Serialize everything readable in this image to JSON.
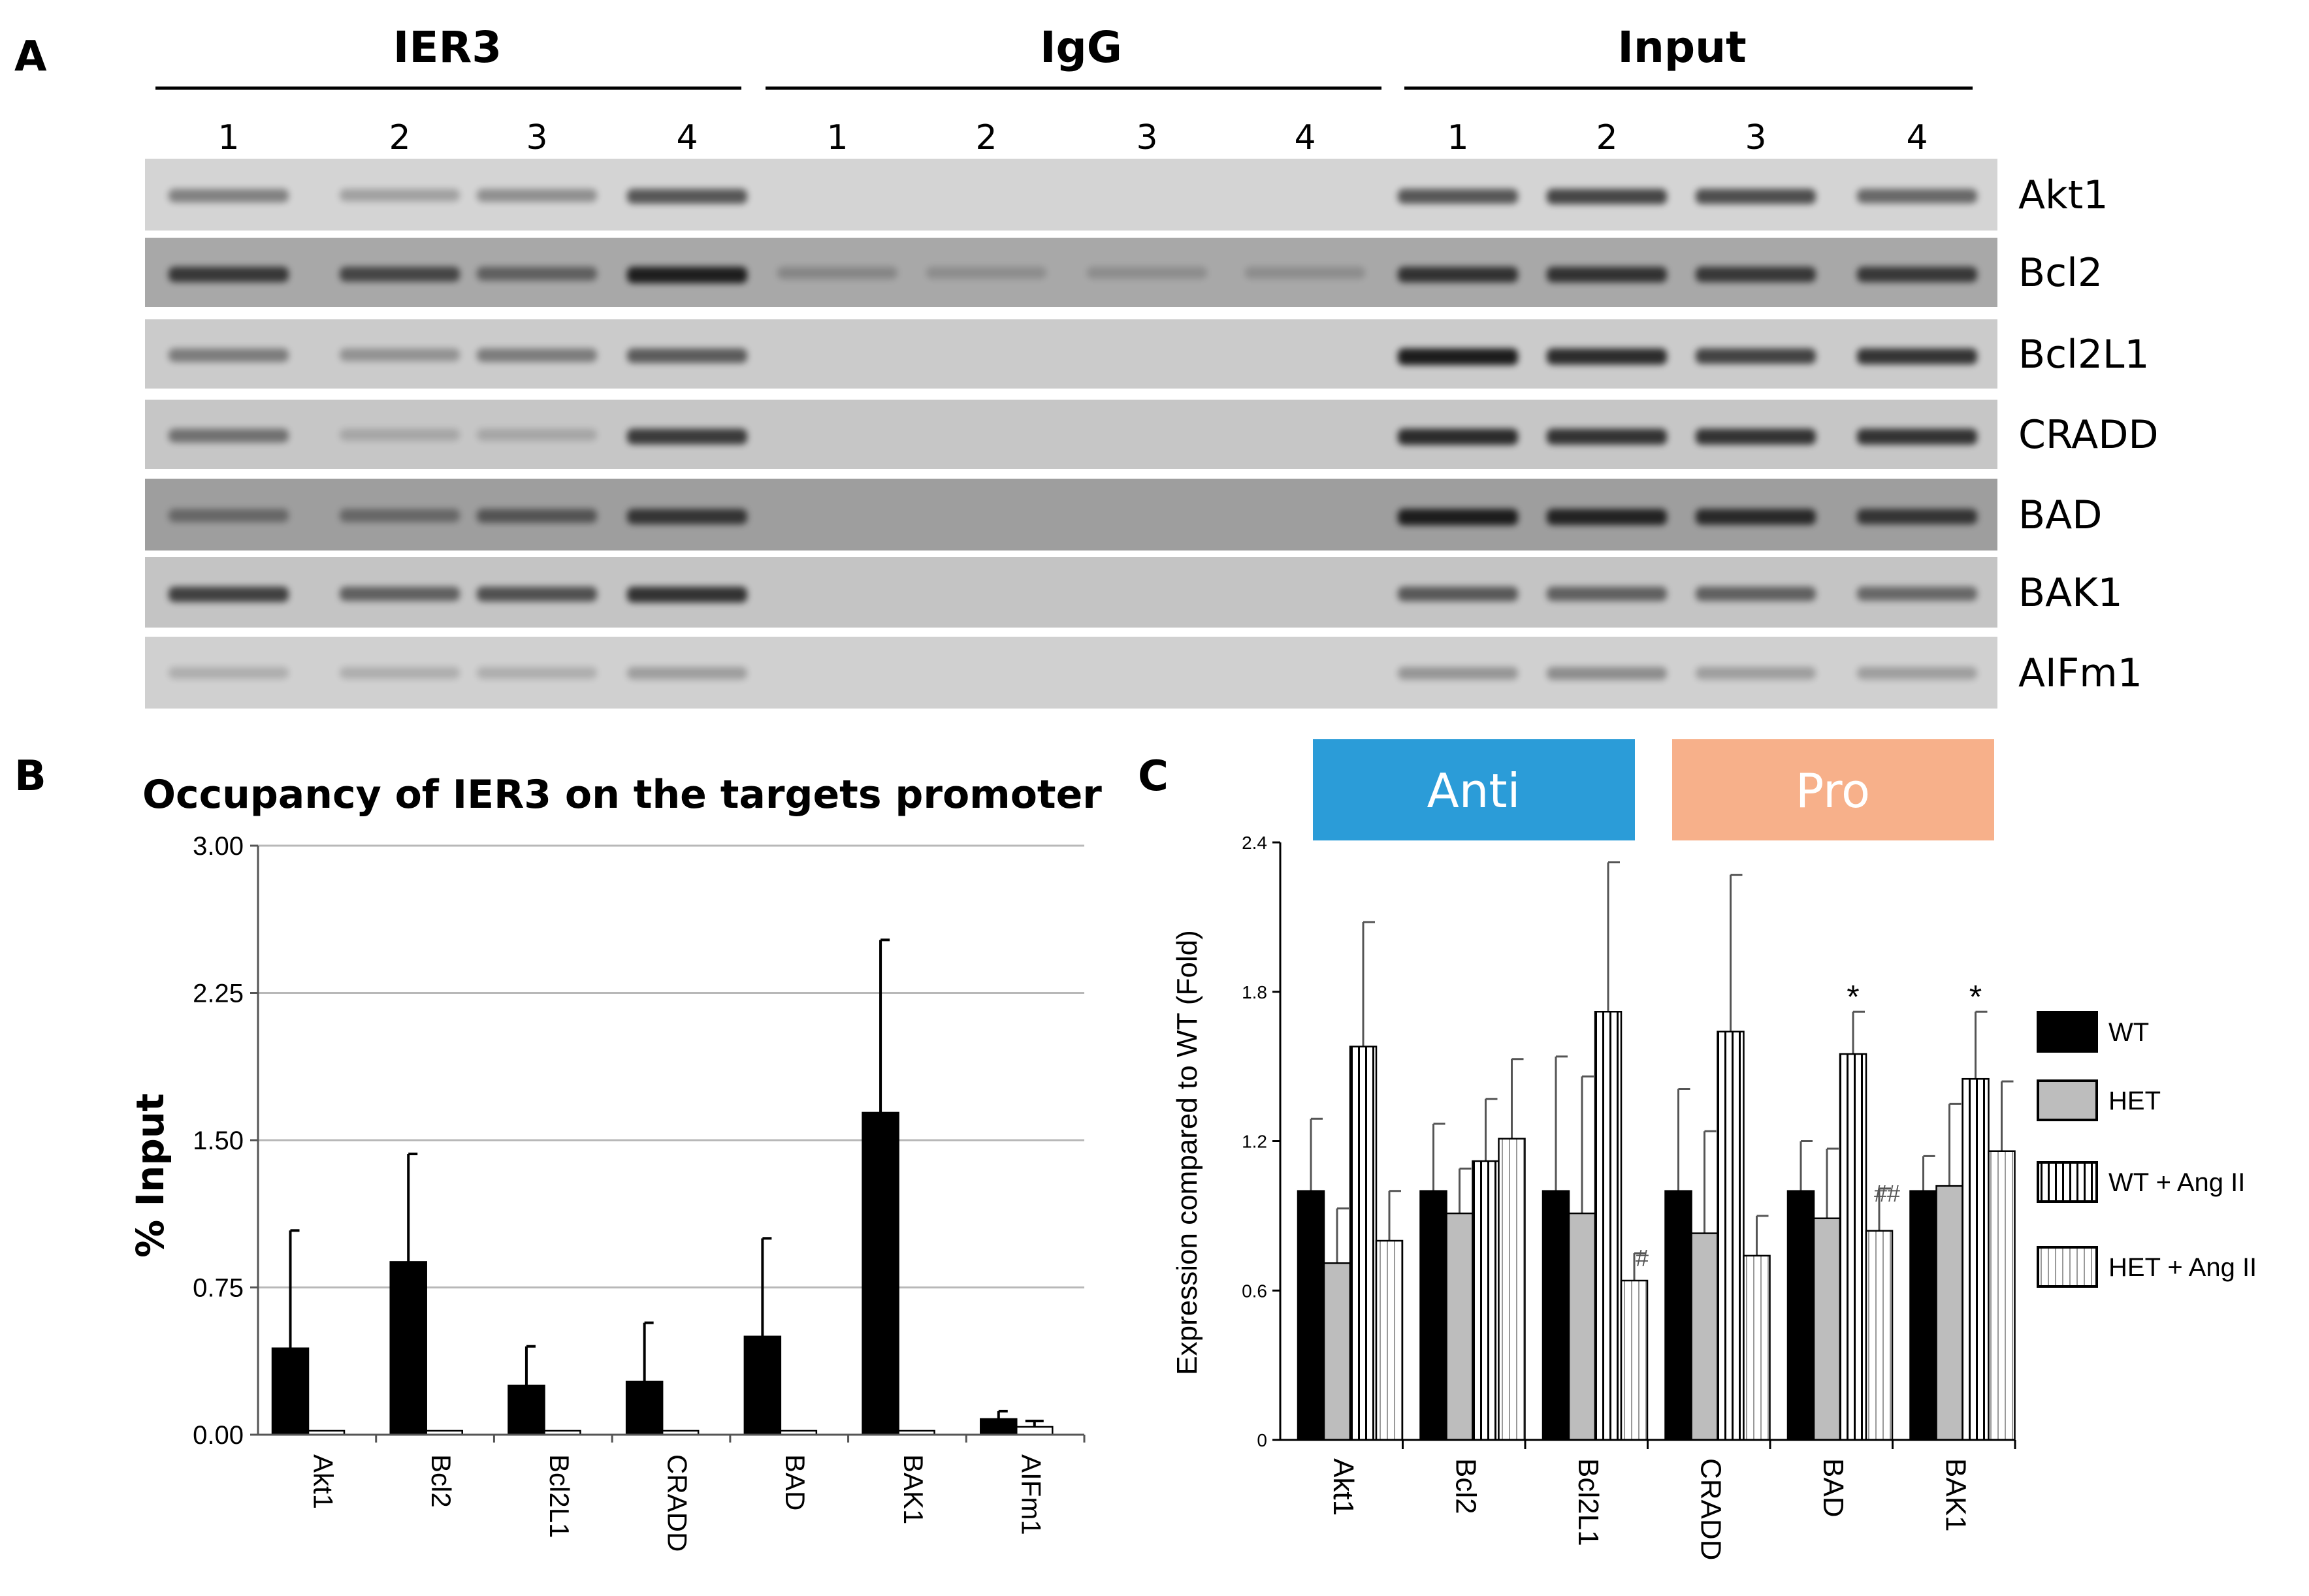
{
  "panel_labels": {
    "a": "A",
    "b": "B",
    "c": "C"
  },
  "gel": {
    "groups": [
      "IER3",
      "IgG",
      "Input"
    ],
    "lanes": [
      "1",
      "2",
      "3",
      "4"
    ],
    "genes": [
      "Akt1",
      "Bcl2",
      "Bcl2L1",
      "CRADD",
      "BAD",
      "BAK1",
      "AIFm1"
    ],
    "band_intensity": {
      "IER3": [
        [
          0.35,
          0.15,
          0.25,
          0.6
        ],
        [
          0.7,
          0.6,
          0.4,
          0.9
        ],
        [
          0.35,
          0.2,
          0.35,
          0.55
        ],
        [
          0.4,
          0.05,
          0.05,
          0.75
        ],
        [
          0.3,
          0.3,
          0.45,
          0.7
        ],
        [
          0.7,
          0.5,
          0.6,
          0.8
        ],
        [
          0.05,
          0.05,
          0.05,
          0.15
        ]
      ],
      "IgG": [
        [
          0,
          0,
          0,
          0
        ],
        [
          0.1,
          0.05,
          0.05,
          0.05
        ],
        [
          0,
          0,
          0,
          0
        ],
        [
          0,
          0,
          0,
          0
        ],
        [
          0,
          0,
          0,
          0
        ],
        [
          0,
          0,
          0,
          0
        ],
        [
          0,
          0,
          0,
          0
        ]
      ],
      "Input": [
        [
          0.6,
          0.7,
          0.65,
          0.5
        ],
        [
          0.75,
          0.75,
          0.7,
          0.7
        ],
        [
          0.95,
          0.85,
          0.7,
          0.8
        ],
        [
          0.85,
          0.8,
          0.8,
          0.8
        ],
        [
          0.9,
          0.85,
          0.8,
          0.7
        ],
        [
          0.55,
          0.5,
          0.5,
          0.45
        ],
        [
          0.2,
          0.25,
          0.15,
          0.15
        ]
      ]
    }
  },
  "chart_data": [
    {
      "type": "bar",
      "title": "Occupancy of IER3 on the targets promoter",
      "xlabel": "",
      "ylabel": "% Input",
      "categories": [
        "Akt1",
        "Bcl2",
        "Bcl2L1",
        "CRADD",
        "BAD",
        "BAK1",
        "AIFm1"
      ],
      "series": [
        {
          "values": [
            0.44,
            0.88,
            0.25,
            0.27,
            0.5,
            1.64,
            0.08
          ],
          "errors": [
            0.6,
            0.55,
            0.2,
            0.3,
            0.5,
            0.88,
            0.04
          ],
          "color": "#000000"
        },
        {
          "values": [
            0.02,
            0.02,
            0.02,
            0.02,
            0.02,
            0.02,
            0.04
          ],
          "errors": [
            0,
            0,
            0,
            0,
            0,
            0,
            0.03
          ],
          "color": "#ffffff"
        }
      ],
      "yticks": [
        "0.00",
        "0.75",
        "1.50",
        "2.25",
        "3.00"
      ],
      "ylim": [
        0,
        3
      ],
      "grid": true
    },
    {
      "type": "bar",
      "title": "",
      "xlabel": "",
      "ylabel": "Expression compared to WT (Fold)",
      "categories": [
        "Akt1",
        "Bcl2",
        "Bcl2L1",
        "CRADD",
        "BAD",
        "BAK1"
      ],
      "series": [
        {
          "name": "WT",
          "values": [
            1.0,
            1.0,
            1.0,
            1.0,
            1.0,
            1.0
          ],
          "errors": [
            0.29,
            0.27,
            0.54,
            0.41,
            0.2,
            0.14
          ],
          "color": "#000000"
        },
        {
          "name": "HET",
          "values": [
            0.71,
            0.91,
            0.91,
            0.83,
            0.89,
            1.02
          ],
          "errors": [
            0.22,
            0.18,
            0.55,
            0.41,
            0.28,
            0.33
          ],
          "color": "#bdbdbd"
        },
        {
          "name": "WT + Ang II",
          "values": [
            1.58,
            1.12,
            1.72,
            1.64,
            1.55,
            1.45
          ],
          "errors": [
            0.5,
            0.25,
            0.6,
            0.63,
            0.17,
            0.27
          ],
          "color": "#ffffff"
        },
        {
          "name": "HET + Ang II",
          "values": [
            0.8,
            1.21,
            0.64,
            0.74,
            0.84,
            1.16
          ],
          "errors": [
            0.2,
            0.32,
            0.11,
            0.16,
            0.17,
            0.28
          ],
          "color": "#ffffff"
        }
      ],
      "yticks": [
        "0",
        "0.6",
        "1.2",
        "1.8",
        "2.4"
      ],
      "ylim": [
        0,
        2.4
      ],
      "annotations": [
        {
          "category": "Bcl2L1",
          "series": "HET + Ang II",
          "text": "#"
        },
        {
          "category": "BAD",
          "series": "HET + Ang II",
          "text": "##"
        },
        {
          "category": "BAD",
          "series": "WT + Ang II",
          "text": "*"
        },
        {
          "category": "BAK1",
          "series": "WT + Ang II",
          "text": "*"
        }
      ],
      "group_banners": [
        {
          "label": "Anti",
          "color": "#2b9cd8"
        },
        {
          "label": "Pro",
          "color": "#f7b08a"
        }
      ],
      "legend": "right"
    }
  ]
}
